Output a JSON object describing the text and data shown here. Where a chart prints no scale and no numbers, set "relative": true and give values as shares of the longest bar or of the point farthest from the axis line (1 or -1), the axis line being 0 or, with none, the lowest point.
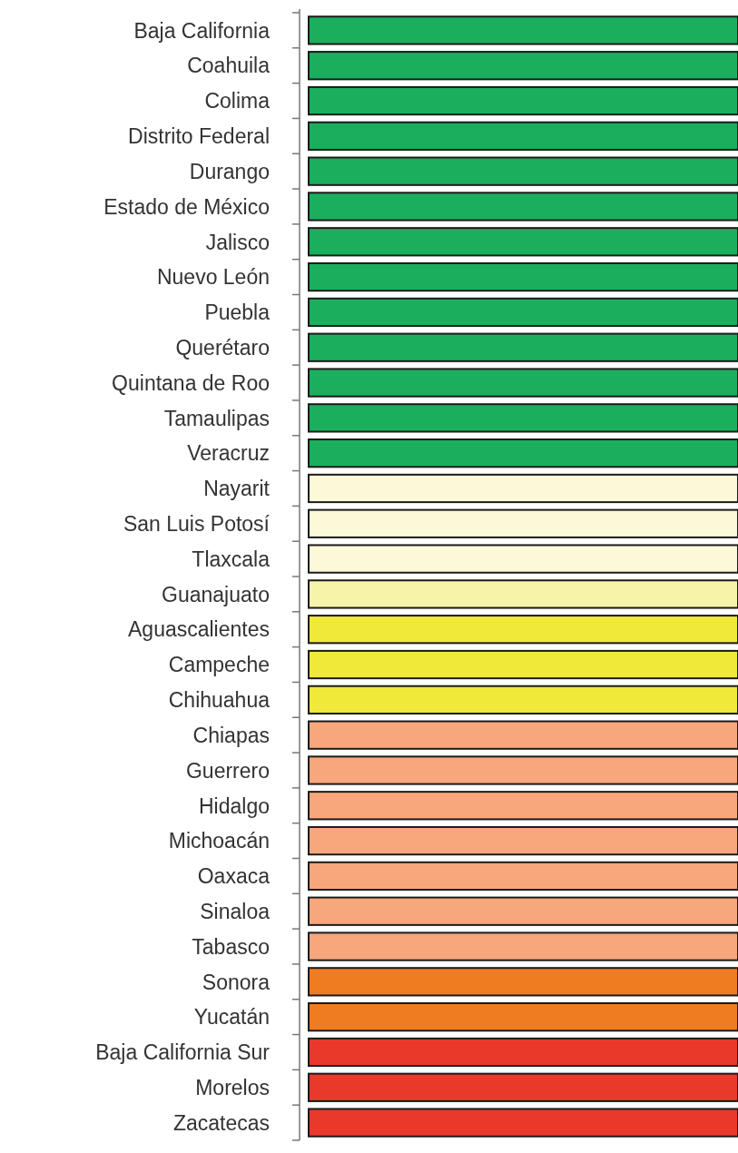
{
  "chart_data": {
    "type": "bar",
    "orientation": "horizontal",
    "relative": true,
    "categories": [
      "Baja California",
      "Coahuila",
      "Colima",
      "Distrito Federal",
      "Durango",
      "Estado de México",
      "Jalisco",
      "Nuevo León",
      "Puebla",
      "Querétaro",
      "Quintana de Roo",
      "Tamaulipas",
      "Veracruz",
      "Nayarit",
      "San Luis Potosí",
      "Tlaxcala",
      "Guanajuato",
      "Aguascalientes",
      "Campeche",
      "Chihuahua",
      "Chiapas",
      "Guerrero",
      "Hidalgo",
      "Michoacán",
      "Oaxaca",
      "Sinaloa",
      "Tabasco",
      "Sonora",
      "Yucatán",
      "Baja California Sur",
      "Morelos",
      "Zacatecas"
    ],
    "values": [
      1,
      1,
      1,
      1,
      1,
      1,
      1,
      1,
      1,
      1,
      1,
      1,
      1,
      1,
      1,
      1,
      1,
      1,
      1,
      1,
      1,
      1,
      1,
      1,
      1,
      1,
      1,
      1,
      1,
      1,
      1,
      1
    ],
    "colors": [
      "#1aaf5d",
      "#1aaf5d",
      "#1aaf5d",
      "#1aaf5d",
      "#1aaf5d",
      "#1aaf5d",
      "#1aaf5d",
      "#1aaf5d",
      "#1aaf5d",
      "#1aaf5d",
      "#1aaf5d",
      "#1aaf5d",
      "#1aaf5d",
      "#fcf9d8",
      "#fcf9d8",
      "#fcf9d8",
      "#f7f3a8",
      "#f0e93a",
      "#f0e93a",
      "#f0e93a",
      "#f7a77b",
      "#f7a77b",
      "#f7a77b",
      "#f7a77b",
      "#f7a77b",
      "#f7a77b",
      "#f7a77b",
      "#f07c22",
      "#f07c22",
      "#e8392a",
      "#e8392a",
      "#e8392a"
    ],
    "legend": false
  }
}
